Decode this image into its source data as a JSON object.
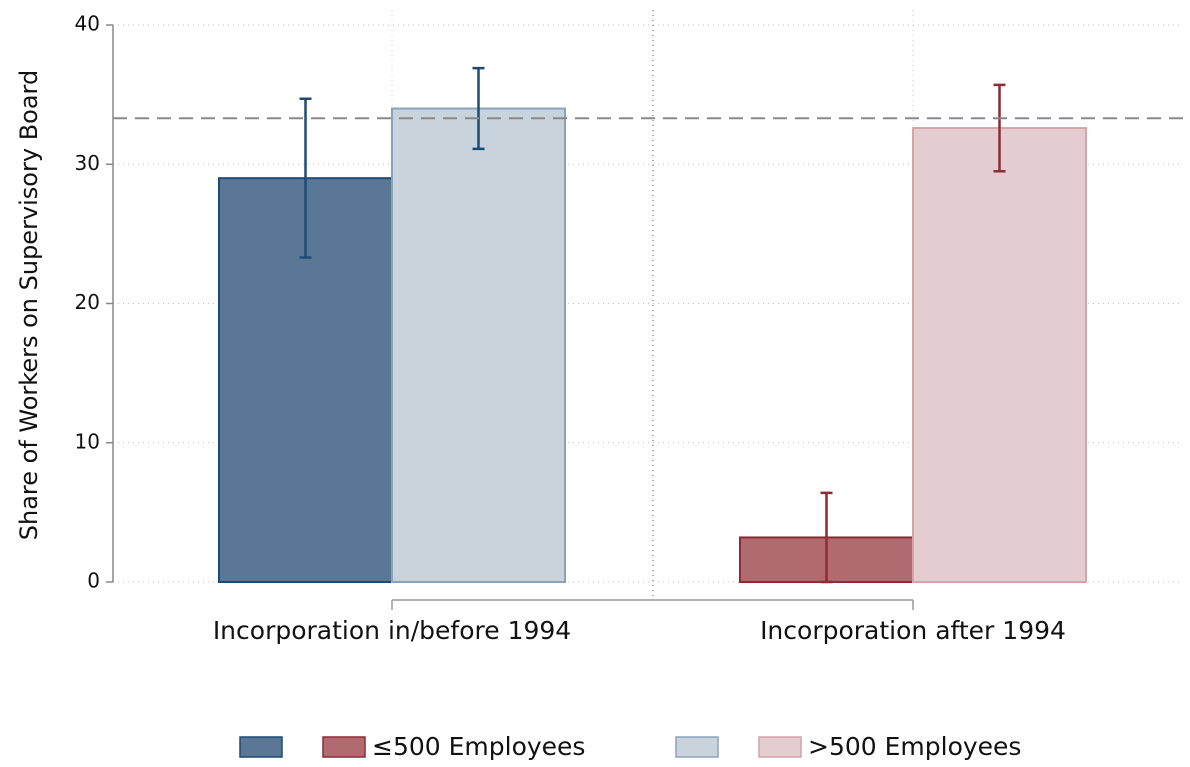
{
  "chart_data": {
    "type": "bar",
    "y_label": "Share of Workers on Supervisory Board",
    "categories": [
      "Incorporation in/before 1994",
      "Incorporation after 1994"
    ],
    "series": [
      {
        "name": "≤500 Employees",
        "colors": [
          "#5a7896",
          "#b06a70"
        ],
        "edge_colors": [
          "#1f4a73",
          "#8c2c36"
        ],
        "values": [
          29,
          3.2
        ],
        "errors": [
          5.7,
          3.2
        ]
      },
      {
        "name": ">500 Employees",
        "colors": [
          "#c8d3dc",
          "#e4cdd1"
        ],
        "edge_colors": [
          "#8aa3bb",
          "#d4a4ab"
        ],
        "values": [
          34,
          32.6
        ],
        "errors": [
          2.9,
          3.1
        ]
      }
    ],
    "reference_line": 33.3,
    "ylim": [
      0,
      40
    ],
    "yticks": [
      0,
      10,
      20,
      30,
      40
    ],
    "grid": true
  }
}
